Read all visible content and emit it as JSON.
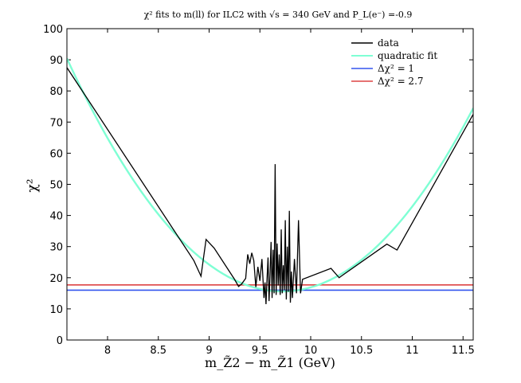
{
  "chart_data": {
    "type": "line",
    "title": "χ² fits to m(ll) for ILC2 with √s = 340 GeV and P_L(e⁻) =-0.9",
    "xlabel": "m_Z̃2 − m_Z̃1 (GeV)",
    "ylabel": "χ²",
    "xlim": [
      7.6,
      11.6
    ],
    "ylim": [
      0,
      100
    ],
    "xticks": [
      8,
      8.5,
      9,
      9.5,
      10,
      10.5,
      11,
      11.5
    ],
    "xtick_labels": [
      "8",
      "8.5",
      "9",
      "9.5",
      "10",
      "10.5",
      "11",
      "11.5"
    ],
    "yticks": [
      0,
      10,
      20,
      30,
      40,
      50,
      60,
      70,
      80,
      90,
      100
    ],
    "ytick_labels": [
      "0",
      "10",
      "20",
      "30",
      "40",
      "50",
      "60",
      "70",
      "80",
      "90",
      "100"
    ],
    "legend_position": "top-right",
    "series": [
      {
        "name": "data",
        "color": "#000000",
        "points": [
          [
            7.6,
            87.5
          ],
          [
            8.85,
            25.5
          ],
          [
            8.92,
            20.5
          ],
          [
            8.97,
            32.3
          ],
          [
            9.05,
            29.5
          ],
          [
            9.25,
            19.5
          ],
          [
            9.29,
            17.2
          ],
          [
            9.32,
            18.0
          ],
          [
            9.36,
            19.8
          ],
          [
            9.38,
            27.5
          ],
          [
            9.4,
            24.5
          ],
          [
            9.42,
            28.0
          ],
          [
            9.44,
            25.5
          ],
          [
            9.46,
            17.0
          ],
          [
            9.48,
            23.5
          ],
          [
            9.5,
            19.0
          ],
          [
            9.52,
            26.0
          ],
          [
            9.54,
            13.5
          ],
          [
            9.55,
            18.5
          ],
          [
            9.56,
            11.5
          ],
          [
            9.57,
            19.5
          ],
          [
            9.58,
            26.5
          ],
          [
            9.59,
            12.5
          ],
          [
            9.6,
            21.0
          ],
          [
            9.61,
            31.5
          ],
          [
            9.62,
            13.5
          ],
          [
            9.63,
            29.0
          ],
          [
            9.64,
            15.0
          ],
          [
            9.65,
            56.5
          ],
          [
            9.66,
            14.5
          ],
          [
            9.67,
            31.0
          ],
          [
            9.68,
            17.5
          ],
          [
            9.69,
            27.5
          ],
          [
            9.7,
            14.5
          ],
          [
            9.71,
            35.5
          ],
          [
            9.72,
            15.0
          ],
          [
            9.73,
            24.0
          ],
          [
            9.74,
            16.0
          ],
          [
            9.75,
            38.5
          ],
          [
            9.76,
            13.0
          ],
          [
            9.77,
            30.0
          ],
          [
            9.78,
            15.5
          ],
          [
            9.79,
            41.5
          ],
          [
            9.8,
            12.0
          ],
          [
            9.81,
            22.0
          ],
          [
            9.82,
            13.5
          ],
          [
            9.84,
            26.0
          ],
          [
            9.86,
            15.0
          ],
          [
            9.88,
            38.5
          ],
          [
            9.9,
            15.0
          ],
          [
            9.92,
            19.5
          ],
          [
            10.2,
            23.0
          ],
          [
            10.28,
            20.0
          ],
          [
            10.3,
            20.5
          ],
          [
            10.75,
            30.8
          ],
          [
            10.85,
            28.9
          ],
          [
            11.6,
            72.5
          ]
        ]
      },
      {
        "name": "quadratic fit",
        "color": "#7fffd4",
        "function": {
          "type": "quadratic",
          "vertex_x": 9.72,
          "vertex_y": 15.6,
          "curvature": 16.65
        },
        "points": []
      },
      {
        "name": "Δχ² = 1",
        "color": "#3355ee",
        "horizontal_line": 16.0,
        "points": []
      },
      {
        "name": "Δχ² = 2.7",
        "color": "#dd4444",
        "horizontal_line": 17.7,
        "points": []
      }
    ]
  }
}
